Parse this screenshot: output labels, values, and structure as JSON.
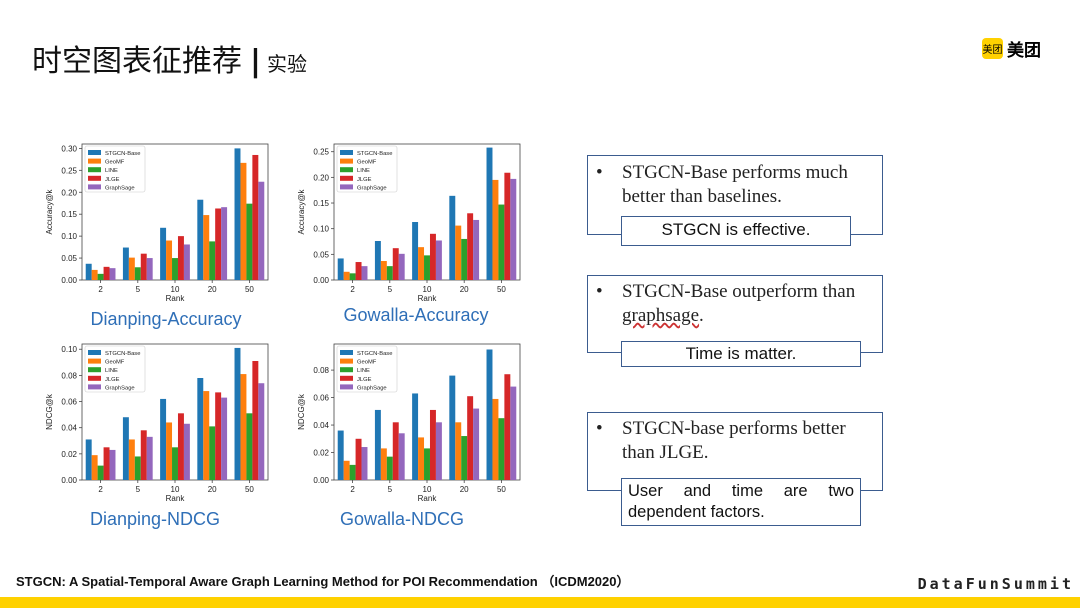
{
  "header": {
    "title": "时空图表征推荐",
    "separator": "|",
    "subtitle": "实验"
  },
  "logo": {
    "badge": "美团",
    "text": "美团"
  },
  "colors": {
    "series": [
      "#1f77b4",
      "#ff7f0e",
      "#2ca02c",
      "#d62728",
      "#9467bd"
    ],
    "caption": "#2f6fb7",
    "accent": "#ffd100"
  },
  "chart_data": [
    {
      "type": "bar",
      "title": "Dianping-Accuracy",
      "xlabel": "Rank",
      "ylabel": "Accuracy@k",
      "categories": [
        "2",
        "5",
        "10",
        "20",
        "50"
      ],
      "ylim": [
        0,
        0.31
      ],
      "yticks": [
        "0.00",
        "0.05",
        "0.10",
        "0.15",
        "0.20",
        "0.25",
        "0.30"
      ],
      "legend": "top-left",
      "series": [
        {
          "name": "STGCN-Base",
          "values": [
            0.037,
            0.074,
            0.119,
            0.183,
            0.3
          ]
        },
        {
          "name": "GeoMF",
          "values": [
            0.023,
            0.051,
            0.09,
            0.148,
            0.267
          ]
        },
        {
          "name": "LINE",
          "values": [
            0.014,
            0.029,
            0.05,
            0.088,
            0.174
          ]
        },
        {
          "name": "JLGE",
          "values": [
            0.03,
            0.06,
            0.1,
            0.163,
            0.285
          ]
        },
        {
          "name": "GraphSage",
          "values": [
            0.027,
            0.05,
            0.081,
            0.166,
            0.224
          ]
        }
      ]
    },
    {
      "type": "bar",
      "title": "Gowalla-Accuracy",
      "xlabel": "Rank",
      "ylabel": "Accuracy@k",
      "categories": [
        "2",
        "5",
        "10",
        "20",
        "50"
      ],
      "ylim": [
        0,
        0.265
      ],
      "yticks": [
        "0.00",
        "0.05",
        "0.10",
        "0.15",
        "0.20",
        "0.25"
      ],
      "legend": "top-left",
      "series": [
        {
          "name": "STGCN-Base",
          "values": [
            0.042,
            0.076,
            0.113,
            0.164,
            0.258
          ]
        },
        {
          "name": "GeoMF",
          "values": [
            0.016,
            0.037,
            0.064,
            0.106,
            0.195
          ]
        },
        {
          "name": "LINE",
          "values": [
            0.013,
            0.027,
            0.048,
            0.08,
            0.147
          ]
        },
        {
          "name": "JLGE",
          "values": [
            0.035,
            0.062,
            0.09,
            0.13,
            0.209
          ]
        },
        {
          "name": "GraphSage",
          "values": [
            0.027,
            0.051,
            0.077,
            0.117,
            0.197
          ]
        }
      ]
    },
    {
      "type": "bar",
      "title": "Dianping-NDCG",
      "xlabel": "Rank",
      "ylabel": "NDCG@k",
      "categories": [
        "2",
        "5",
        "10",
        "20",
        "50"
      ],
      "ylim": [
        0,
        0.104
      ],
      "yticks": [
        "0.00",
        "0.02",
        "0.04",
        "0.06",
        "0.08",
        "0.10"
      ],
      "legend": "top-left",
      "series": [
        {
          "name": "STGCN-Base",
          "values": [
            0.031,
            0.048,
            0.062,
            0.078,
            0.101
          ]
        },
        {
          "name": "GeoMF",
          "values": [
            0.019,
            0.031,
            0.044,
            0.068,
            0.081
          ]
        },
        {
          "name": "LINE",
          "values": [
            0.011,
            0.018,
            0.025,
            0.041,
            0.051
          ]
        },
        {
          "name": "JLGE",
          "values": [
            0.025,
            0.038,
            0.051,
            0.067,
            0.091
          ]
        },
        {
          "name": "GraphSage",
          "values": [
            0.023,
            0.033,
            0.043,
            0.063,
            0.074
          ]
        }
      ]
    },
    {
      "type": "bar",
      "title": "Gowalla-NDCG",
      "xlabel": "Rank",
      "ylabel": "NDCG@k",
      "categories": [
        "2",
        "5",
        "10",
        "20",
        "50"
      ],
      "ylim": [
        0,
        0.099
      ],
      "yticks": [
        "0.00",
        "0.02",
        "0.04",
        "0.06",
        "0.08"
      ],
      "legend": "top-left",
      "series": [
        {
          "name": "STGCN-Base",
          "values": [
            0.036,
            0.051,
            0.063,
            0.076,
            0.095
          ]
        },
        {
          "name": "GeoMF",
          "values": [
            0.014,
            0.023,
            0.031,
            0.042,
            0.059
          ]
        },
        {
          "name": "LINE",
          "values": [
            0.011,
            0.017,
            0.023,
            0.032,
            0.045
          ]
        },
        {
          "name": "JLGE",
          "values": [
            0.03,
            0.042,
            0.051,
            0.061,
            0.077
          ]
        },
        {
          "name": "GraphSage",
          "values": [
            0.024,
            0.034,
            0.042,
            0.052,
            0.068
          ]
        }
      ]
    }
  ],
  "notes": [
    {
      "bullet": "•",
      "text": "STGCN-Base performs much better than baselines.",
      "conclusion": "STGCN is effective."
    },
    {
      "bullet": "•",
      "text_a": "STGCN-Base outperform than ",
      "text_b": "graphsage",
      "text_c": ".",
      "conclusion": "Time is matter."
    },
    {
      "bullet": "•",
      "text": "STGCN-base performs better than JLGE.",
      "conclusion": "User and time are two dependent factors."
    }
  ],
  "footer": {
    "citation": "STGCN: A Spatial-Temporal Aware Graph Learning Method for POI Recommendation （ICDM2020）",
    "brand": "DataFunSummit"
  }
}
